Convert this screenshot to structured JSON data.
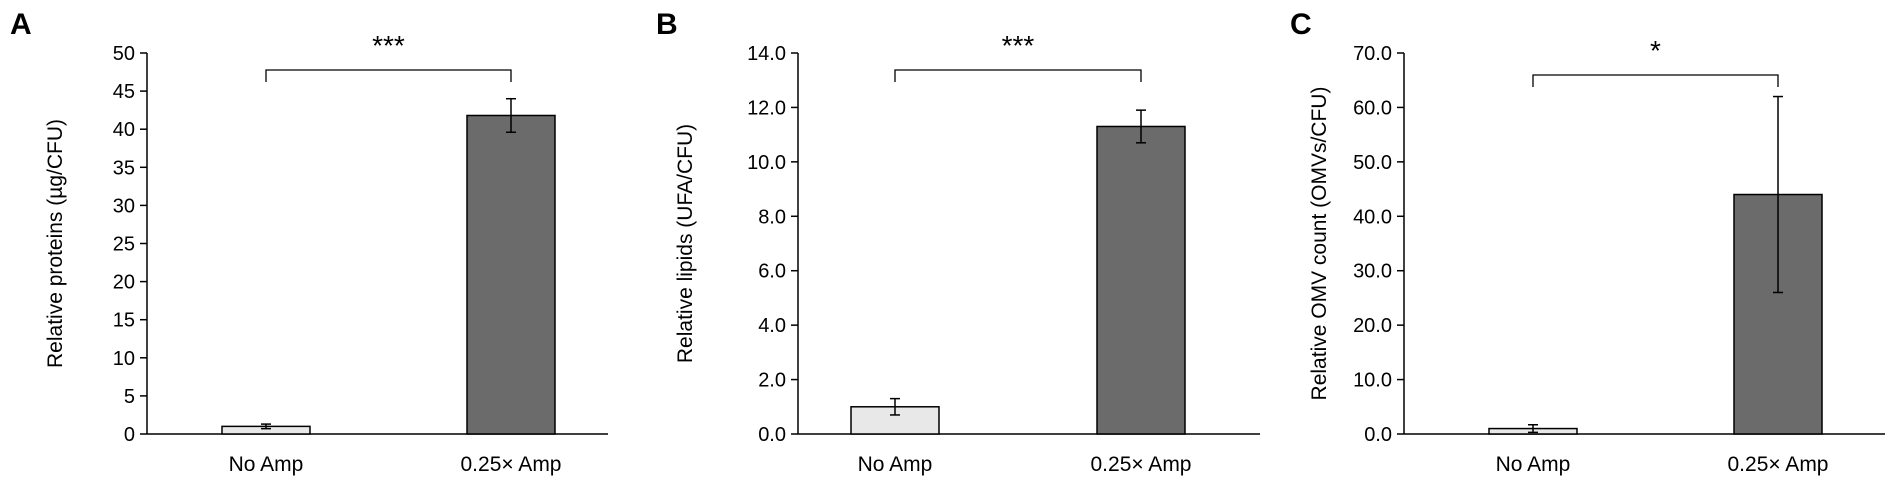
{
  "colors": {
    "light_bar": "#e8e8e8",
    "dark_bar": "#6b6b6b",
    "outline": "#000000",
    "axis": "#000000"
  },
  "chart_data": [
    {
      "panel": "A",
      "type": "bar",
      "categories": [
        "No Amp",
        "0.25× Amp"
      ],
      "values": [
        1.0,
        41.8
      ],
      "errors": [
        0.3,
        2.2
      ],
      "bar_colors": [
        "#e8e8e8",
        "#6b6b6b"
      ],
      "ylabel": "Relative proteins (µg/CFU)",
      "ylim": [
        0,
        50
      ],
      "yticks": [
        "0",
        "5",
        "10",
        "15",
        "20",
        "25",
        "30",
        "35",
        "40",
        "45",
        "50"
      ],
      "significance": "***",
      "grid": false,
      "legend": "none"
    },
    {
      "panel": "B",
      "type": "bar",
      "categories": [
        "No Amp",
        "0.25× Amp"
      ],
      "values": [
        1.0,
        11.3
      ],
      "errors": [
        0.3,
        0.6
      ],
      "bar_colors": [
        "#e8e8e8",
        "#6b6b6b"
      ],
      "ylabel": "Relative lipids (UFA/CFU)",
      "ylim": [
        0,
        14
      ],
      "yticks": [
        "0.0",
        "2.0",
        "4.0",
        "6.0",
        "8.0",
        "10.0",
        "12.0",
        "14.0"
      ],
      "significance": "***",
      "grid": false,
      "legend": "none"
    },
    {
      "panel": "C",
      "type": "bar",
      "categories": [
        "No Amp",
        "0.25× Amp"
      ],
      "values": [
        1.0,
        44.0
      ],
      "errors": [
        0.7,
        18.0
      ],
      "bar_colors": [
        "#e8e8e8",
        "#6b6b6b"
      ],
      "ylabel": "Relative OMV count (OMVs/CFU)",
      "ylim": [
        0,
        70
      ],
      "yticks": [
        "0.0",
        "10.0",
        "20.0",
        "30.0",
        "40.0",
        "50.0",
        "60.0",
        "70.0"
      ],
      "significance": "*",
      "grid": false,
      "legend": "none"
    }
  ]
}
